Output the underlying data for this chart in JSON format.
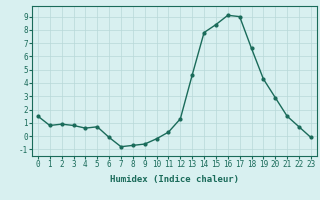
{
  "x": [
    0,
    1,
    2,
    3,
    4,
    5,
    6,
    7,
    8,
    9,
    10,
    11,
    12,
    13,
    14,
    15,
    16,
    17,
    18,
    19,
    20,
    21,
    22,
    23
  ],
  "y": [
    1.5,
    0.8,
    0.9,
    0.8,
    0.6,
    0.7,
    -0.1,
    -0.8,
    -0.7,
    -0.6,
    -0.2,
    0.3,
    1.3,
    4.6,
    7.8,
    8.4,
    9.1,
    9.0,
    6.6,
    4.3,
    2.9,
    1.5,
    0.7,
    -0.1
  ],
  "line_color": "#1a6b5a",
  "bg_color": "#d8f0f0",
  "grid_color": "#b8d8d8",
  "xlabel": "Humidex (Indice chaleur)",
  "ylim": [
    -1.5,
    9.8
  ],
  "xlim": [
    -0.5,
    23.5
  ],
  "yticks": [
    -1,
    0,
    1,
    2,
    3,
    4,
    5,
    6,
    7,
    8,
    9
  ],
  "xticks": [
    0,
    1,
    2,
    3,
    4,
    5,
    6,
    7,
    8,
    9,
    10,
    11,
    12,
    13,
    14,
    15,
    16,
    17,
    18,
    19,
    20,
    21,
    22,
    23
  ],
  "xlabel_fontsize": 6.5,
  "tick_fontsize": 5.5,
  "linewidth": 1.0,
  "marker_size": 2.0
}
